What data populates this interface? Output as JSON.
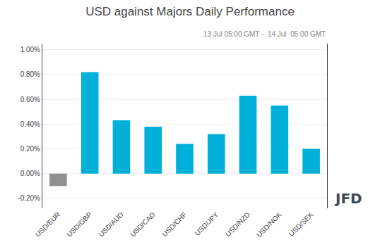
{
  "chart_data": {
    "type": "bar",
    "title": "USD against Majors Daily Performance",
    "subtitle": "13 Jul 05:00 GMT -  14 Jul  05:00 GMT",
    "categories": [
      "USD/EUR",
      "USD/GBP",
      "USD/AUD",
      "USD/CAD",
      "USD/CHF",
      "USD/JPY",
      "USD/NZD",
      "USD/NOK",
      "USD/SEK"
    ],
    "values": [
      -0.1,
      0.82,
      0.43,
      0.38,
      0.24,
      0.32,
      0.63,
      0.55,
      0.2
    ],
    "colors": [
      "#909090",
      "#00b0d8",
      "#00b0d8",
      "#00b0d8",
      "#00b0d8",
      "#00b0d8",
      "#00b0d8",
      "#00b0d8",
      "#00b0d8"
    ],
    "ylim": [
      -0.28,
      1.05
    ],
    "yticks": [
      {
        "value": -0.2,
        "label": "-0.20%"
      },
      {
        "value": 0.0,
        "label": "0.00%"
      },
      {
        "value": 0.2,
        "label": "0.20%"
      },
      {
        "value": 0.4,
        "label": "0.40%"
      },
      {
        "value": 0.6,
        "label": "0.60%"
      },
      {
        "value": 0.8,
        "label": "0.80%"
      },
      {
        "value": 1.0,
        "label": "1.00%"
      }
    ],
    "grid": true,
    "annotations": [
      "JFD"
    ]
  }
}
